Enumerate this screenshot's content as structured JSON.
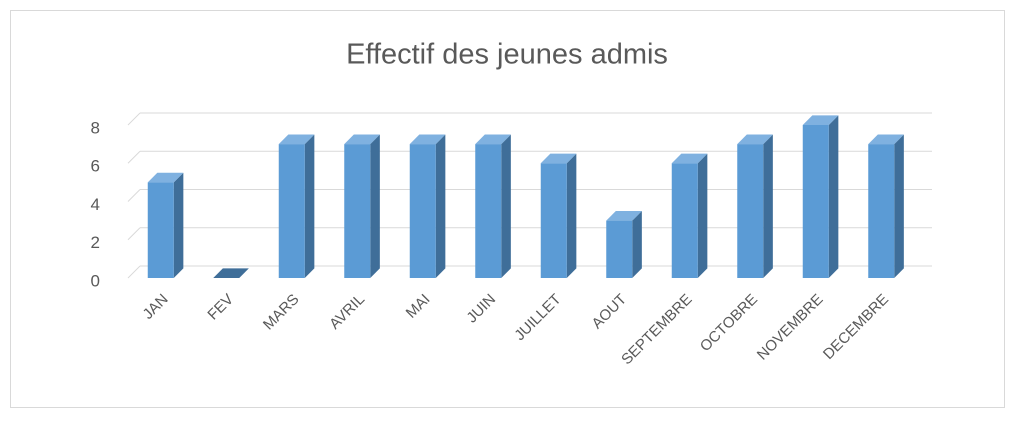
{
  "chart_data": {
    "type": "bar3d",
    "title": "Effectif des jeunes admis",
    "categories": [
      "JAN",
      "FEV",
      "MARS",
      "AVRIL",
      "MAI",
      "JUIN",
      "JUILLET",
      "AOUT",
      "SEPTEMBRE",
      "OCTOBRE",
      "NOVEMBRE",
      "DECEMBRE"
    ],
    "values": [
      5,
      0,
      7,
      7,
      7,
      7,
      6,
      3,
      6,
      7,
      8,
      7
    ],
    "color": "#5b9bd5",
    "ylim": [
      0,
      8
    ],
    "yticks": [
      0,
      2,
      4,
      6,
      8
    ],
    "grid": true
  }
}
